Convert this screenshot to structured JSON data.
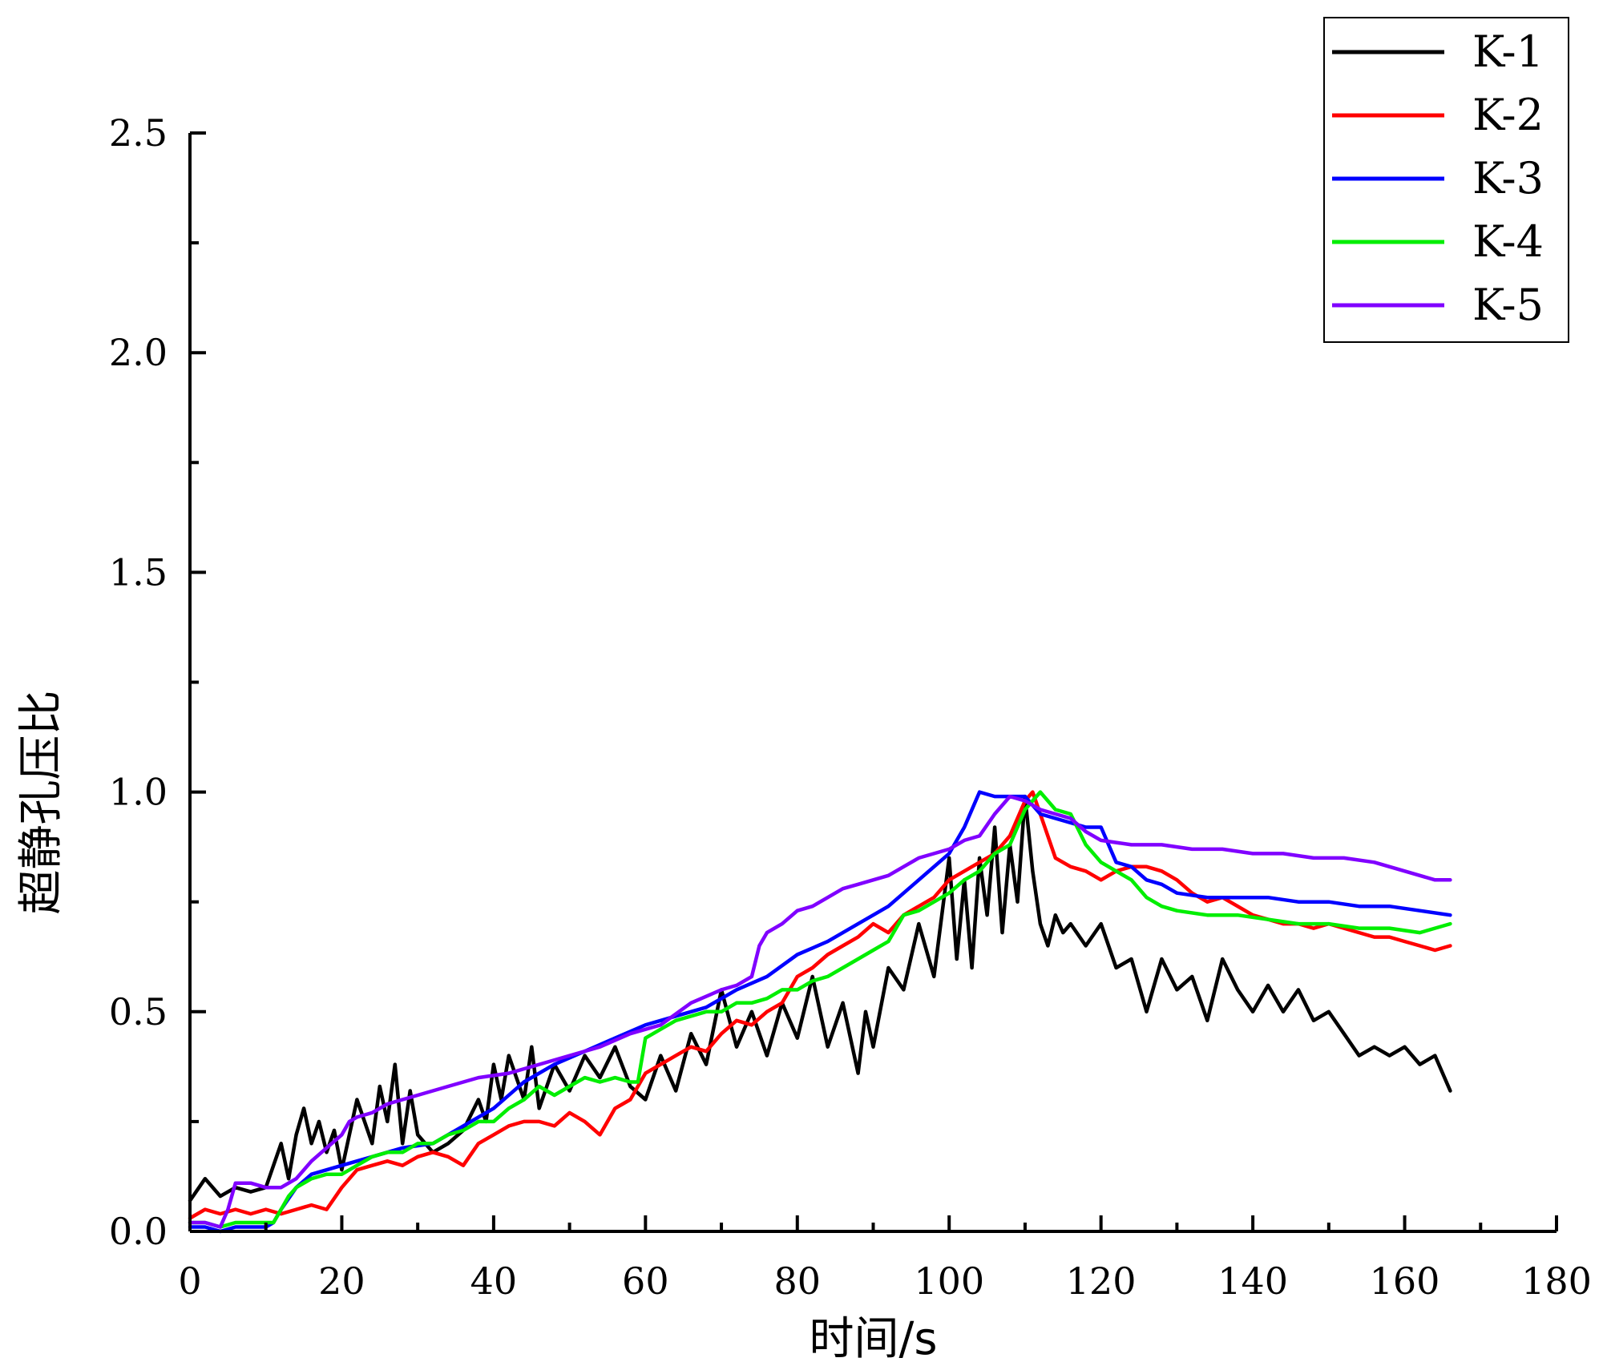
{
  "chart_data": {
    "type": "line",
    "title": "",
    "xlabel": "时间/s",
    "ylabel": "超静孔压比",
    "xlim": [
      0,
      180
    ],
    "ylim": [
      0,
      2.5
    ],
    "xticks": [
      0,
      20,
      40,
      60,
      80,
      100,
      120,
      140,
      160,
      180
    ],
    "yticks": [
      0.0,
      0.5,
      1.0,
      1.5,
      2.0,
      2.5
    ],
    "xtick_labels": [
      "0",
      "20",
      "40",
      "60",
      "80",
      "100",
      "120",
      "140",
      "160",
      "180"
    ],
    "ytick_labels": [
      "0.0",
      "0.5",
      "1.0",
      "1.5",
      "2.0",
      "2.5"
    ],
    "grid": false,
    "legend_position": "top-right",
    "series": [
      {
        "name": "K-1",
        "color": "#000000",
        "x": [
          0,
          2,
          4,
          6,
          8,
          10,
          12,
          13,
          14,
          15,
          16,
          17,
          18,
          19,
          20,
          22,
          24,
          25,
          26,
          27,
          28,
          29,
          30,
          32,
          34,
          36,
          38,
          39,
          40,
          41,
          42,
          44,
          45,
          46,
          48,
          50,
          52,
          54,
          56,
          58,
          60,
          62,
          64,
          66,
          68,
          70,
          72,
          74,
          76,
          78,
          80,
          82,
          84,
          86,
          88,
          89,
          90,
          92,
          94,
          96,
          98,
          100,
          101,
          102,
          103,
          104,
          105,
          106,
          107,
          108,
          109,
          110,
          111,
          112,
          113,
          114,
          115,
          116,
          118,
          120,
          122,
          124,
          126,
          128,
          130,
          132,
          134,
          136,
          138,
          140,
          142,
          144,
          146,
          148,
          150,
          152,
          154,
          156,
          158,
          160,
          162,
          164,
          166
        ],
        "values": [
          0.07,
          0.12,
          0.08,
          0.1,
          0.09,
          0.1,
          0.2,
          0.12,
          0.22,
          0.28,
          0.2,
          0.25,
          0.18,
          0.23,
          0.14,
          0.3,
          0.2,
          0.33,
          0.25,
          0.38,
          0.2,
          0.32,
          0.22,
          0.18,
          0.2,
          0.23,
          0.3,
          0.25,
          0.38,
          0.3,
          0.4,
          0.3,
          0.42,
          0.28,
          0.38,
          0.32,
          0.4,
          0.35,
          0.42,
          0.33,
          0.3,
          0.4,
          0.32,
          0.45,
          0.38,
          0.55,
          0.42,
          0.5,
          0.4,
          0.52,
          0.44,
          0.58,
          0.42,
          0.52,
          0.36,
          0.5,
          0.42,
          0.6,
          0.55,
          0.7,
          0.58,
          0.85,
          0.62,
          0.8,
          0.6,
          0.85,
          0.72,
          0.92,
          0.68,
          0.88,
          0.75,
          0.99,
          0.82,
          0.7,
          0.65,
          0.72,
          0.68,
          0.7,
          0.65,
          0.7,
          0.6,
          0.62,
          0.5,
          0.62,
          0.55,
          0.58,
          0.48,
          0.62,
          0.55,
          0.5,
          0.56,
          0.5,
          0.55,
          0.48,
          0.5,
          0.45,
          0.4,
          0.42,
          0.4,
          0.42,
          0.38,
          0.4,
          0.32
        ]
      },
      {
        "name": "K-2",
        "color": "#ff0000",
        "x": [
          0,
          2,
          4,
          6,
          8,
          10,
          12,
          14,
          16,
          18,
          20,
          22,
          24,
          26,
          28,
          30,
          32,
          34,
          36,
          38,
          40,
          42,
          44,
          46,
          48,
          50,
          52,
          54,
          56,
          58,
          60,
          62,
          64,
          66,
          68,
          70,
          72,
          74,
          76,
          78,
          80,
          82,
          84,
          86,
          88,
          90,
          92,
          94,
          96,
          98,
          100,
          102,
          104,
          106,
          108,
          110,
          111,
          112,
          114,
          116,
          118,
          120,
          122,
          124,
          126,
          128,
          130,
          132,
          134,
          136,
          138,
          140,
          142,
          144,
          146,
          148,
          150,
          152,
          154,
          156,
          158,
          160,
          162,
          164,
          166
        ],
        "values": [
          0.03,
          0.05,
          0.04,
          0.05,
          0.04,
          0.05,
          0.04,
          0.05,
          0.06,
          0.05,
          0.1,
          0.14,
          0.15,
          0.16,
          0.15,
          0.17,
          0.18,
          0.17,
          0.15,
          0.2,
          0.22,
          0.24,
          0.25,
          0.25,
          0.24,
          0.27,
          0.25,
          0.22,
          0.28,
          0.3,
          0.36,
          0.38,
          0.4,
          0.42,
          0.41,
          0.45,
          0.48,
          0.47,
          0.5,
          0.52,
          0.58,
          0.6,
          0.63,
          0.65,
          0.67,
          0.7,
          0.68,
          0.72,
          0.74,
          0.76,
          0.8,
          0.82,
          0.84,
          0.86,
          0.9,
          0.98,
          1.0,
          0.95,
          0.85,
          0.83,
          0.82,
          0.8,
          0.82,
          0.83,
          0.83,
          0.82,
          0.8,
          0.77,
          0.75,
          0.76,
          0.74,
          0.72,
          0.71,
          0.7,
          0.7,
          0.69,
          0.7,
          0.69,
          0.68,
          0.67,
          0.67,
          0.66,
          0.65,
          0.64,
          0.65
        ]
      },
      {
        "name": "K-3",
        "color": "#0000ff",
        "x": [
          0,
          2,
          4,
          6,
          8,
          10,
          11,
          12,
          14,
          16,
          18,
          20,
          24,
          28,
          32,
          36,
          40,
          44,
          48,
          52,
          56,
          60,
          64,
          68,
          72,
          76,
          80,
          84,
          88,
          92,
          96,
          100,
          102,
          104,
          106,
          108,
          110,
          112,
          114,
          116,
          118,
          120,
          122,
          124,
          126,
          128,
          130,
          134,
          138,
          142,
          146,
          150,
          154,
          158,
          162,
          166
        ],
        "values": [
          0.01,
          0.01,
          0.0,
          0.01,
          0.01,
          0.01,
          0.02,
          0.05,
          0.1,
          0.13,
          0.14,
          0.15,
          0.17,
          0.19,
          0.2,
          0.24,
          0.28,
          0.34,
          0.38,
          0.41,
          0.44,
          0.47,
          0.49,
          0.51,
          0.55,
          0.58,
          0.63,
          0.66,
          0.7,
          0.74,
          0.8,
          0.86,
          0.92,
          1.0,
          0.99,
          0.99,
          0.99,
          0.95,
          0.94,
          0.93,
          0.92,
          0.92,
          0.84,
          0.83,
          0.8,
          0.79,
          0.77,
          0.76,
          0.76,
          0.76,
          0.75,
          0.75,
          0.74,
          0.74,
          0.73,
          0.72
        ]
      },
      {
        "name": "K-4",
        "color": "#00ee00",
        "x": [
          0,
          2,
          4,
          6,
          8,
          10,
          11,
          12,
          13,
          14,
          16,
          18,
          20,
          22,
          24,
          26,
          28,
          30,
          32,
          34,
          36,
          38,
          40,
          42,
          44,
          46,
          48,
          50,
          52,
          54,
          56,
          58,
          59,
          60,
          62,
          64,
          66,
          68,
          70,
          72,
          74,
          76,
          78,
          80,
          82,
          84,
          86,
          88,
          90,
          92,
          94,
          96,
          98,
          100,
          102,
          104,
          106,
          108,
          110,
          112,
          114,
          116,
          118,
          120,
          122,
          124,
          126,
          128,
          130,
          134,
          138,
          142,
          146,
          150,
          154,
          158,
          162,
          166
        ],
        "values": [
          0.02,
          0.02,
          0.01,
          0.02,
          0.02,
          0.02,
          0.02,
          0.05,
          0.08,
          0.1,
          0.12,
          0.13,
          0.13,
          0.15,
          0.17,
          0.18,
          0.18,
          0.2,
          0.2,
          0.22,
          0.23,
          0.25,
          0.25,
          0.28,
          0.3,
          0.33,
          0.31,
          0.33,
          0.35,
          0.34,
          0.35,
          0.34,
          0.34,
          0.44,
          0.46,
          0.48,
          0.49,
          0.5,
          0.5,
          0.52,
          0.52,
          0.53,
          0.55,
          0.55,
          0.57,
          0.58,
          0.6,
          0.62,
          0.64,
          0.66,
          0.72,
          0.73,
          0.75,
          0.77,
          0.8,
          0.82,
          0.86,
          0.88,
          0.96,
          1.0,
          0.96,
          0.95,
          0.88,
          0.84,
          0.82,
          0.8,
          0.76,
          0.74,
          0.73,
          0.72,
          0.72,
          0.71,
          0.7,
          0.7,
          0.69,
          0.69,
          0.68,
          0.7
        ]
      },
      {
        "name": "K-5",
        "color": "#8000ff",
        "x": [
          0,
          2,
          4,
          5,
          6,
          8,
          10,
          12,
          14,
          16,
          18,
          20,
          21,
          22,
          24,
          26,
          28,
          30,
          34,
          38,
          42,
          46,
          50,
          54,
          58,
          62,
          66,
          70,
          72,
          74,
          75,
          76,
          78,
          80,
          82,
          84,
          86,
          88,
          90,
          92,
          94,
          96,
          98,
          100,
          102,
          104,
          106,
          108,
          110,
          112,
          114,
          116,
          118,
          120,
          124,
          128,
          132,
          136,
          140,
          144,
          148,
          152,
          156,
          160,
          164,
          166
        ],
        "values": [
          0.02,
          0.02,
          0.01,
          0.05,
          0.11,
          0.11,
          0.1,
          0.1,
          0.12,
          0.16,
          0.19,
          0.22,
          0.25,
          0.26,
          0.27,
          0.29,
          0.3,
          0.31,
          0.33,
          0.35,
          0.36,
          0.38,
          0.4,
          0.42,
          0.45,
          0.47,
          0.52,
          0.55,
          0.56,
          0.58,
          0.65,
          0.68,
          0.7,
          0.73,
          0.74,
          0.76,
          0.78,
          0.79,
          0.8,
          0.81,
          0.83,
          0.85,
          0.86,
          0.87,
          0.89,
          0.9,
          0.95,
          0.99,
          0.98,
          0.96,
          0.95,
          0.94,
          0.91,
          0.89,
          0.88,
          0.88,
          0.87,
          0.87,
          0.86,
          0.86,
          0.85,
          0.85,
          0.84,
          0.82,
          0.8,
          0.8
        ]
      }
    ]
  }
}
